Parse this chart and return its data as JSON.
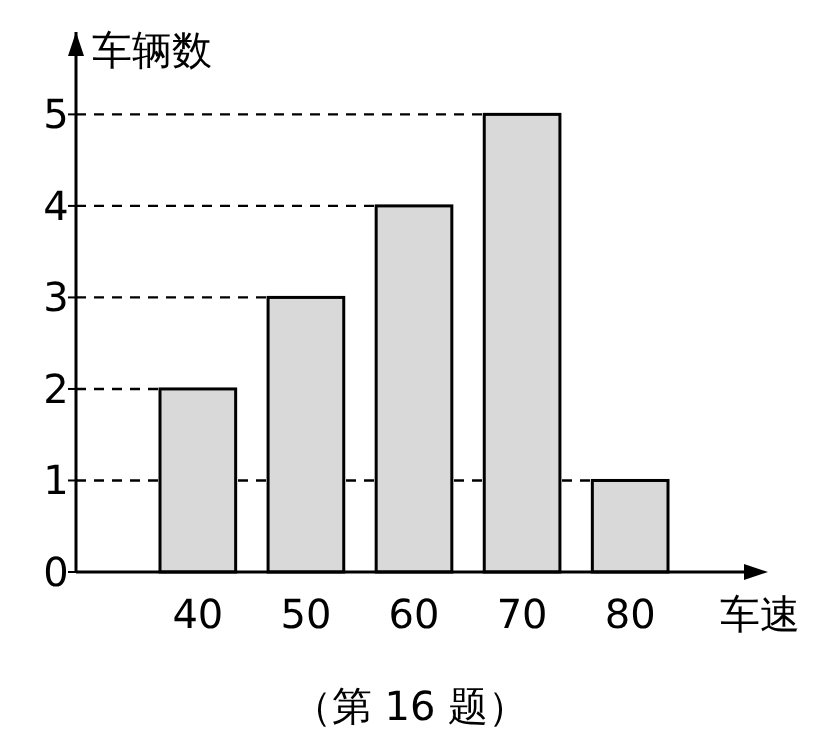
{
  "chart_data": {
    "type": "bar",
    "ylabel": "车辆数",
    "xlabel": "车速",
    "categories": [
      "40",
      "50",
      "60",
      "70",
      "80"
    ],
    "values": [
      2,
      3,
      4,
      5,
      1
    ],
    "color": "#d9d9d9",
    "ylim": [
      0,
      5.9
    ],
    "yticks": [
      0,
      1,
      2,
      3,
      4,
      5
    ],
    "ref_lines": [
      {
        "axis": "y",
        "value": 1,
        "line_style": "dashed"
      },
      {
        "axis": "y",
        "value": 2,
        "line_style": "dashed"
      },
      {
        "axis": "y",
        "value": 3,
        "line_style": "dashed"
      },
      {
        "axis": "y",
        "value": 4,
        "line_style": "dashed"
      },
      {
        "axis": "y",
        "value": 5,
        "line_style": "dashed"
      }
    ],
    "annotations": [
      "（第 16 题）"
    ]
  }
}
